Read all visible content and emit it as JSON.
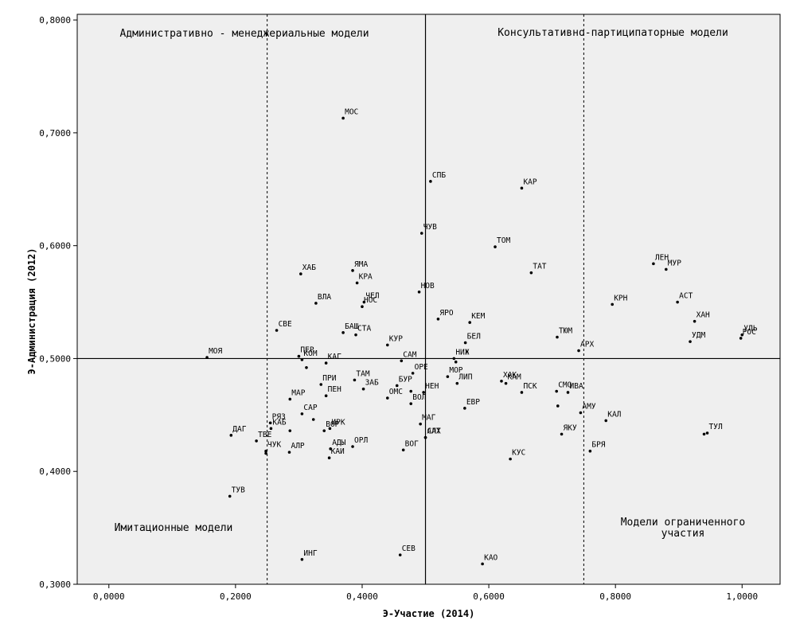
{
  "chart_data": {
    "type": "scatter",
    "xlabel": "Э-Участие (2014)",
    "ylabel": "Э-Администрация (2012)",
    "xlim": [
      -0.05,
      1.06
    ],
    "ylim": [
      0.3,
      0.805
    ],
    "x_ticks": [
      0.0,
      0.2,
      0.4,
      0.6,
      0.8,
      1.0
    ],
    "x_tick_labels": [
      "0,0000",
      "0,2000",
      "0,4000",
      "0,6000",
      "0,8000",
      "1,0000"
    ],
    "y_ticks": [
      0.3,
      0.4,
      0.5,
      0.6,
      0.7,
      0.8
    ],
    "y_tick_labels": [
      "0,3000",
      "0,4000",
      "0,5000",
      "0,6000",
      "0,7000",
      "0,8000"
    ],
    "reference_lines": {
      "solid_vertical_x": 0.5,
      "solid_horizontal_y": 0.5,
      "dashed_vertical_x": [
        0.25,
        0.75
      ]
    },
    "background": "#efefef",
    "point_color": "#000000",
    "quadrant_labels": [
      {
        "text": "Административно - менеджериальные модели",
        "position": "top-left"
      },
      {
        "text": "Консультативно-партиципаторные модели",
        "position": "top-right"
      },
      {
        "text": "Имитационные модели",
        "position": "bottom-left"
      },
      {
        "text": "Модели ограниченного участия",
        "position": "bottom-right"
      }
    ],
    "points": [
      {
        "label": "МОС",
        "x": 0.37,
        "y": 0.713
      },
      {
        "label": "СПБ",
        "x": 0.508,
        "y": 0.657
      },
      {
        "label": "КАР",
        "x": 0.652,
        "y": 0.651
      },
      {
        "label": "ЧУВ",
        "x": 0.494,
        "y": 0.611
      },
      {
        "label": "ТОМ",
        "x": 0.61,
        "y": 0.599
      },
      {
        "label": "ЛЕН",
        "x": 0.86,
        "y": 0.584
      },
      {
        "label": "МУР",
        "x": 0.88,
        "y": 0.579
      },
      {
        "label": "ТАТ",
        "x": 0.667,
        "y": 0.576
      },
      {
        "label": "ХАБ",
        "x": 0.303,
        "y": 0.575
      },
      {
        "label": "ЯМА",
        "x": 0.385,
        "y": 0.578
      },
      {
        "label": "КРА",
        "x": 0.392,
        "y": 0.567
      },
      {
        "label": "НОВ",
        "x": 0.49,
        "y": 0.559
      },
      {
        "label": "ВЛА",
        "x": 0.327,
        "y": 0.549
      },
      {
        "label": "ЧЕЛ",
        "x": 0.403,
        "y": 0.55
      },
      {
        "label": "НОС",
        "x": 0.4,
        "y": 0.546
      },
      {
        "label": "КРН",
        "x": 0.795,
        "y": 0.548
      },
      {
        "label": "АСТ",
        "x": 0.898,
        "y": 0.55
      },
      {
        "label": "ЯРО",
        "x": 0.52,
        "y": 0.535
      },
      {
        "label": "КЕМ",
        "x": 0.57,
        "y": 0.532
      },
      {
        "label": "ХАН",
        "x": 0.925,
        "y": 0.533
      },
      {
        "label": "СВЕ",
        "x": 0.265,
        "y": 0.525
      },
      {
        "label": "БАШ",
        "x": 0.37,
        "y": 0.523
      },
      {
        "label": "СТА",
        "x": 0.39,
        "y": 0.521
      },
      {
        "label": "УЛЬ",
        "x": 1.0,
        "y": 0.521
      },
      {
        "label": "ТЮМ",
        "x": 0.708,
        "y": 0.519
      },
      {
        "label": "УДМ",
        "x": 0.918,
        "y": 0.515
      },
      {
        "label": "БЕЛ",
        "x": 0.563,
        "y": 0.514
      },
      {
        "label": "РОС",
        "x": 0.998,
        "y": 0.518
      },
      {
        "label": "КУР",
        "x": 0.44,
        "y": 0.512
      },
      {
        "label": "АРХ",
        "x": 0.742,
        "y": 0.507
      },
      {
        "label": "ПЕР",
        "x": 0.3,
        "y": 0.502
      },
      {
        "label": "МОЯ",
        "x": 0.155,
        "y": 0.501
      },
      {
        "label": "КОМ",
        "x": 0.305,
        "y": 0.499
      },
      {
        "label": "САМ",
        "x": 0.462,
        "y": 0.498
      },
      {
        "label": "НИЖ",
        "x": 0.545,
        "y": 0.5
      },
      {
        "label": "КАГ",
        "x": 0.343,
        "y": 0.496
      },
      {
        "label": "",
        "x": 0.548,
        "y": 0.497
      },
      {
        "label": "",
        "x": 0.312,
        "y": 0.492
      },
      {
        "label": "ОРЕ",
        "x": 0.48,
        "y": 0.487
      },
      {
        "label": "МОР",
        "x": 0.535,
        "y": 0.484
      },
      {
        "label": "ТАМ",
        "x": 0.388,
        "y": 0.481
      },
      {
        "label": "ХАК",
        "x": 0.62,
        "y": 0.48
      },
      {
        "label": "КАМ",
        "x": 0.627,
        "y": 0.478
      },
      {
        "label": "ЛИП",
        "x": 0.55,
        "y": 0.478
      },
      {
        "label": "ПРИ",
        "x": 0.335,
        "y": 0.477
      },
      {
        "label": "БУР",
        "x": 0.455,
        "y": 0.476
      },
      {
        "label": "ЗАБ",
        "x": 0.402,
        "y": 0.473
      },
      {
        "label": "НЕН",
        "x": 0.497,
        "y": 0.47
      },
      {
        "label": "ПСК",
        "x": 0.652,
        "y": 0.47
      },
      {
        "label": "СМО",
        "x": 0.707,
        "y": 0.471
      },
      {
        "label": "ИВА",
        "x": 0.725,
        "y": 0.47
      },
      {
        "label": "",
        "x": 0.477,
        "y": 0.471
      },
      {
        "label": "МАР",
        "x": 0.286,
        "y": 0.464
      },
      {
        "label": "ПЕН",
        "x": 0.343,
        "y": 0.467
      },
      {
        "label": "ОМС",
        "x": 0.44,
        "y": 0.465
      },
      {
        "label": "ВОЛ",
        "x": 0.477,
        "y": 0.46
      },
      {
        "label": "ЕВР",
        "x": 0.562,
        "y": 0.456
      },
      {
        "label": "",
        "x": 0.709,
        "y": 0.458
      },
      {
        "label": "АМУ",
        "x": 0.745,
        "y": 0.452
      },
      {
        "label": "САР",
        "x": 0.305,
        "y": 0.451
      },
      {
        "label": "МАГ",
        "x": 0.492,
        "y": 0.442
      },
      {
        "label": "САХ",
        "x": 0.5,
        "y": 0.43
      },
      {
        "label": "КАЛ",
        "x": 0.785,
        "y": 0.445
      },
      {
        "label": "",
        "x": 0.323,
        "y": 0.446
      },
      {
        "label": "РЯЗ",
        "x": 0.255,
        "y": 0.443
      },
      {
        "label": "КАБ",
        "x": 0.256,
        "y": 0.438
      },
      {
        "label": "ИРК",
        "x": 0.349,
        "y": 0.438
      },
      {
        "label": "ЯКУ",
        "x": 0.715,
        "y": 0.433
      },
      {
        "label": "ВОР",
        "x": 0.34,
        "y": 0.436
      },
      {
        "label": "",
        "x": 0.286,
        "y": 0.436
      },
      {
        "label": "ДАГ",
        "x": 0.193,
        "y": 0.432
      },
      {
        "label": "ТУЛ",
        "x": 0.945,
        "y": 0.434
      },
      {
        "label": "АЛТ",
        "x": 0.5,
        "y": 0.43
      },
      {
        "label": "ТВЕ",
        "x": 0.233,
        "y": 0.427
      },
      {
        "label": "ОРЛ",
        "x": 0.385,
        "y": 0.422
      },
      {
        "label": "АДЫ",
        "x": 0.35,
        "y": 0.42
      },
      {
        "label": "ВОГ",
        "x": 0.465,
        "y": 0.419
      },
      {
        "label": "БРЯ",
        "x": 0.76,
        "y": 0.418
      },
      {
        "label": "ЧУК",
        "x": 0.248,
        "y": 0.418
      },
      {
        "label": "",
        "x": 0.248,
        "y": 0.416
      },
      {
        "label": "АЛР",
        "x": 0.285,
        "y": 0.417
      },
      {
        "label": "КАИ",
        "x": 0.348,
        "y": 0.412
      },
      {
        "label": "КУС",
        "x": 0.634,
        "y": 0.411
      },
      {
        "label": "ТУВ",
        "x": 0.191,
        "y": 0.378
      },
      {
        "label": "ИНГ",
        "x": 0.305,
        "y": 0.322
      },
      {
        "label": "СЕВ",
        "x": 0.46,
        "y": 0.326
      },
      {
        "label": "КАО",
        "x": 0.59,
        "y": 0.318
      },
      {
        "label": "",
        "x": 0.94,
        "y": 0.433
      }
    ]
  }
}
